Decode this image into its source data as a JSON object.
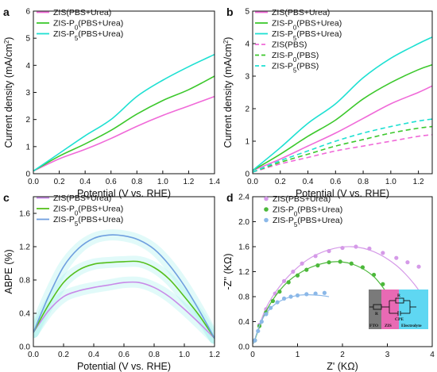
{
  "colors": {
    "pink": "#f06ad8",
    "green": "#3cc82c",
    "cyan": "#1ee0d2",
    "abpe_pink": "#c889e8",
    "abpe_green": "#56bf1c",
    "abpe_blue": "#6f9fdf",
    "eis_pink": "#d59ae8",
    "eis_green": "#4cb83a",
    "eis_blue": "#8bb8e8"
  },
  "chart_data": [
    {
      "panel": "a",
      "type": "line",
      "xlabel": "Potential (V vs. RHE)",
      "ylabel": "Current density (mA/cm²)",
      "xlim": [
        0.0,
        1.4
      ],
      "ylim": [
        0,
        6
      ],
      "xticks": [
        "0.0",
        "0.2",
        "0.4",
        "0.6",
        "0.8",
        "1.0",
        "1.2",
        "1.4"
      ],
      "yticks": [
        "0",
        "1",
        "2",
        "3",
        "4",
        "5",
        "6"
      ],
      "legend": "top-left",
      "series": [
        {
          "name": "ZIS(PBS+Urea)",
          "color": "pink",
          "style": "solid",
          "x": [
            0.0,
            0.2,
            0.4,
            0.6,
            0.8,
            1.0,
            1.2,
            1.4
          ],
          "y": [
            0.1,
            0.55,
            0.9,
            1.3,
            1.75,
            2.15,
            2.5,
            2.85
          ]
        },
        {
          "name": "ZIS-P0(PBS+Urea)",
          "color": "green",
          "style": "solid",
          "x": [
            0.0,
            0.2,
            0.4,
            0.6,
            0.8,
            1.0,
            1.2,
            1.4
          ],
          "y": [
            0.1,
            0.65,
            1.1,
            1.6,
            2.2,
            2.7,
            3.1,
            3.6
          ]
        },
        {
          "name": "ZIS-P5(PBS+Urea)",
          "color": "cyan",
          "style": "solid",
          "x": [
            0.0,
            0.2,
            0.4,
            0.6,
            0.8,
            1.0,
            1.2,
            1.4
          ],
          "y": [
            0.1,
            0.75,
            1.4,
            2.0,
            2.85,
            3.45,
            3.95,
            4.4
          ]
        }
      ]
    },
    {
      "panel": "b",
      "type": "line",
      "xlabel": "Potential (V vs. RHE)",
      "ylabel": "Current density (mA/cm²)",
      "xlim": [
        0.0,
        1.3
      ],
      "ylim": [
        0,
        5
      ],
      "xticks": [
        "0.0",
        "0.2",
        "0.4",
        "0.6",
        "0.8",
        "1.0",
        "1.2"
      ],
      "yticks": [
        "0",
        "1",
        "2",
        "3",
        "4",
        "5"
      ],
      "legend": "top-left",
      "series": [
        {
          "name": "ZIS(PBS+Urea)",
          "color": "pink",
          "style": "solid",
          "x": [
            0.0,
            0.2,
            0.4,
            0.6,
            0.8,
            1.0,
            1.2,
            1.3
          ],
          "y": [
            0.1,
            0.45,
            0.85,
            1.25,
            1.7,
            2.15,
            2.5,
            2.7
          ]
        },
        {
          "name": "ZIS-P0(PBS+Urea)",
          "color": "green",
          "style": "solid",
          "x": [
            0.0,
            0.2,
            0.4,
            0.6,
            0.8,
            1.0,
            1.2,
            1.3
          ],
          "y": [
            0.1,
            0.6,
            1.15,
            1.65,
            2.3,
            2.8,
            3.2,
            3.35
          ]
        },
        {
          "name": "ZIS-P5(PBS+Urea)",
          "color": "cyan",
          "style": "solid",
          "x": [
            0.0,
            0.2,
            0.4,
            0.6,
            0.8,
            1.0,
            1.2,
            1.3
          ],
          "y": [
            0.1,
            0.8,
            1.55,
            2.15,
            2.95,
            3.55,
            4.0,
            4.2
          ]
        },
        {
          "name": "ZIS(PBS)",
          "color": "pink",
          "style": "dashed",
          "x": [
            0.0,
            0.2,
            0.4,
            0.6,
            0.8,
            1.0,
            1.2,
            1.3
          ],
          "y": [
            0.05,
            0.3,
            0.5,
            0.7,
            0.85,
            1.0,
            1.15,
            1.2
          ]
        },
        {
          "name": "ZIS-P0(PBS)",
          "color": "green",
          "style": "dashed",
          "x": [
            0.0,
            0.2,
            0.4,
            0.6,
            0.8,
            1.0,
            1.2,
            1.3
          ],
          "y": [
            0.05,
            0.35,
            0.6,
            0.85,
            1.05,
            1.25,
            1.4,
            1.45
          ]
        },
        {
          "name": "ZIS-P5(PBS)",
          "color": "cyan",
          "style": "dashed",
          "x": [
            0.0,
            0.2,
            0.4,
            0.6,
            0.8,
            1.0,
            1.2,
            1.3
          ],
          "y": [
            0.05,
            0.4,
            0.7,
            1.0,
            1.25,
            1.45,
            1.62,
            1.68
          ]
        }
      ]
    },
    {
      "panel": "c",
      "type": "line",
      "xlabel": "Potential (V vs. RHE)",
      "ylabel": "ABPE (%)",
      "xlim": [
        0.0,
        1.2
      ],
      "ylim": [
        0.0,
        1.8
      ],
      "xticks": [
        "0.0",
        "0.2",
        "0.4",
        "0.6",
        "0.8",
        "1.0",
        "1.2"
      ],
      "yticks": [
        "0.0",
        "0.4",
        "0.8",
        "1.2",
        "1.6"
      ],
      "legend": "top-left",
      "series": [
        {
          "name": "ZIS(PBS+Urea)",
          "color": "abpe_pink",
          "style": "solid",
          "x": [
            0.0,
            0.1,
            0.2,
            0.3,
            0.4,
            0.5,
            0.6,
            0.7,
            0.8,
            0.9,
            1.0,
            1.1,
            1.2
          ],
          "y": [
            0.17,
            0.43,
            0.6,
            0.67,
            0.71,
            0.74,
            0.77,
            0.77,
            0.71,
            0.6,
            0.45,
            0.28,
            0.1
          ]
        },
        {
          "name": "ZIS-P0(PBS+Urea)",
          "color": "abpe_green",
          "style": "solid",
          "x": [
            0.0,
            0.1,
            0.2,
            0.3,
            0.4,
            0.5,
            0.6,
            0.7,
            0.8,
            0.9,
            1.0,
            1.1,
            1.2
          ],
          "y": [
            0.17,
            0.5,
            0.77,
            0.92,
            0.99,
            1.01,
            1.02,
            1.02,
            0.95,
            0.81,
            0.6,
            0.37,
            0.1
          ]
        },
        {
          "name": "ZIS-P5(PBS+Urea)",
          "color": "abpe_blue",
          "style": "solid",
          "x": [
            0.0,
            0.1,
            0.2,
            0.3,
            0.4,
            0.5,
            0.6,
            0.7,
            0.8,
            0.9,
            1.0,
            1.1,
            1.2
          ],
          "y": [
            0.17,
            0.6,
            0.96,
            1.18,
            1.3,
            1.34,
            1.33,
            1.28,
            1.17,
            0.98,
            0.73,
            0.43,
            0.1
          ]
        }
      ]
    },
    {
      "panel": "d",
      "type": "scatter",
      "xlabel": "Z' (KΩ)",
      "ylabel": "-Z'' (KΩ)",
      "xlim": [
        0,
        4
      ],
      "ylim": [
        0.0,
        2.4
      ],
      "xticks": [
        "0",
        "1",
        "2",
        "3",
        "4"
      ],
      "yticks": [
        "0.0",
        "0.4",
        "0.8",
        "1.2",
        "1.6",
        "2.0",
        "2.4"
      ],
      "legend": "top-left",
      "series": [
        {
          "name": "ZIS(PBS+Urea)",
          "color": "eis_pink",
          "x": [
            0.05,
            0.15,
            0.3,
            0.5,
            0.7,
            0.9,
            1.1,
            1.4,
            1.7,
            2.0,
            2.3,
            2.6,
            2.9,
            3.2,
            3.45,
            3.7
          ],
          "y": [
            0.1,
            0.35,
            0.6,
            0.85,
            1.05,
            1.2,
            1.33,
            1.45,
            1.53,
            1.58,
            1.6,
            1.57,
            1.5,
            1.42,
            1.35,
            1.28
          ],
          "fit_x": [
            0.02,
            0.3,
            0.7,
            1.2,
            1.7,
            2.2,
            2.7,
            3.2,
            3.6,
            3.9
          ],
          "fit_y": [
            0.05,
            0.62,
            1.05,
            1.38,
            1.55,
            1.6,
            1.52,
            1.3,
            1.0,
            0.68
          ]
        },
        {
          "name": "ZIS-P0(PBS+Urea)",
          "color": "eis_green",
          "x": [
            0.05,
            0.15,
            0.3,
            0.45,
            0.6,
            0.8,
            1.0,
            1.2,
            1.45,
            1.7,
            1.95,
            2.2,
            2.45,
            2.7,
            2.9
          ],
          "y": [
            0.1,
            0.33,
            0.55,
            0.73,
            0.88,
            1.03,
            1.14,
            1.23,
            1.3,
            1.35,
            1.36,
            1.33,
            1.27,
            1.15,
            1.0
          ],
          "fit_x": [
            0.02,
            0.3,
            0.7,
            1.1,
            1.5,
            1.9,
            2.3,
            2.7,
            3.0
          ],
          "fit_y": [
            0.05,
            0.57,
            0.98,
            1.2,
            1.32,
            1.36,
            1.3,
            1.12,
            0.85
          ]
        },
        {
          "name": "ZIS-P5(PBS+Urea)",
          "color": "eis_blue",
          "x": [
            0.05,
            0.12,
            0.2,
            0.3,
            0.4,
            0.55,
            0.7,
            0.85,
            1.0,
            1.2,
            1.4,
            1.6
          ],
          "y": [
            0.1,
            0.25,
            0.4,
            0.52,
            0.62,
            0.71,
            0.77,
            0.8,
            0.82,
            0.84,
            0.85,
            0.86
          ],
          "fit_x": [
            0.02,
            0.2,
            0.45,
            0.7,
            1.0,
            1.25,
            1.5,
            1.7
          ],
          "fit_y": [
            0.05,
            0.42,
            0.65,
            0.76,
            0.82,
            0.83,
            0.82,
            0.8
          ]
        }
      ],
      "inset": {
        "labels": {
          "r_s": "R",
          "r_ct": "R",
          "cpe": "CPE",
          "fto": "FTO",
          "zis": "ZIS",
          "electrolyte": "Electrolyte"
        },
        "colors": {
          "fto": "#7a7a7a",
          "zis": "#e86ab4",
          "electrolyte": "#5fd7f2"
        }
      }
    }
  ]
}
